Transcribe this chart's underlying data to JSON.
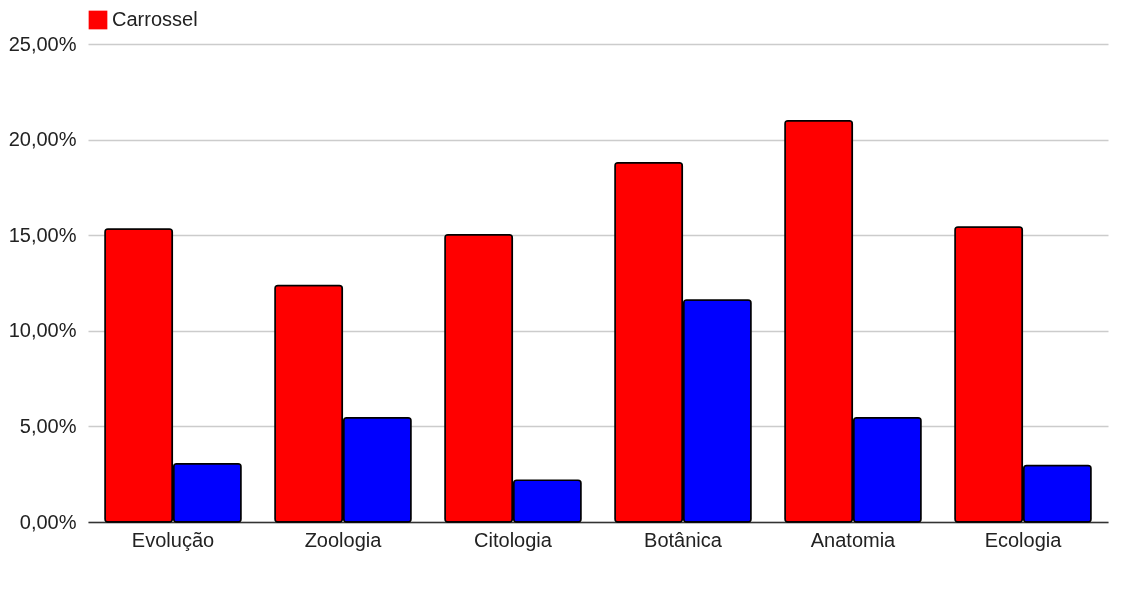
{
  "chart_data": {
    "type": "bar",
    "categories": [
      "Evolução",
      "Zoologia",
      "Citologia",
      "Botânica",
      "Anatomia",
      "Ecologia"
    ],
    "series": [
      {
        "name": "Carrossel",
        "color": "#ff0000",
        "values": [
          15.33,
          12.37,
          15.02,
          18.79,
          20.98,
          15.43
        ]
      },
      {
        "color": "#0000ff",
        "values": [
          3.05,
          5.45,
          2.19,
          11.61,
          5.45,
          2.95
        ]
      }
    ],
    "ylim": [
      0,
      25
    ],
    "yticks": [
      {
        "value": 0,
        "label": "0,00%"
      },
      {
        "value": 5,
        "label": "5,00%"
      },
      {
        "value": 10,
        "label": "10,00%"
      },
      {
        "value": 15,
        "label": "15,00%"
      },
      {
        "value": 20,
        "label": "20,00%"
      },
      {
        "value": 25,
        "label": "25,00%"
      }
    ],
    "grid": "y",
    "legend": "top"
  }
}
